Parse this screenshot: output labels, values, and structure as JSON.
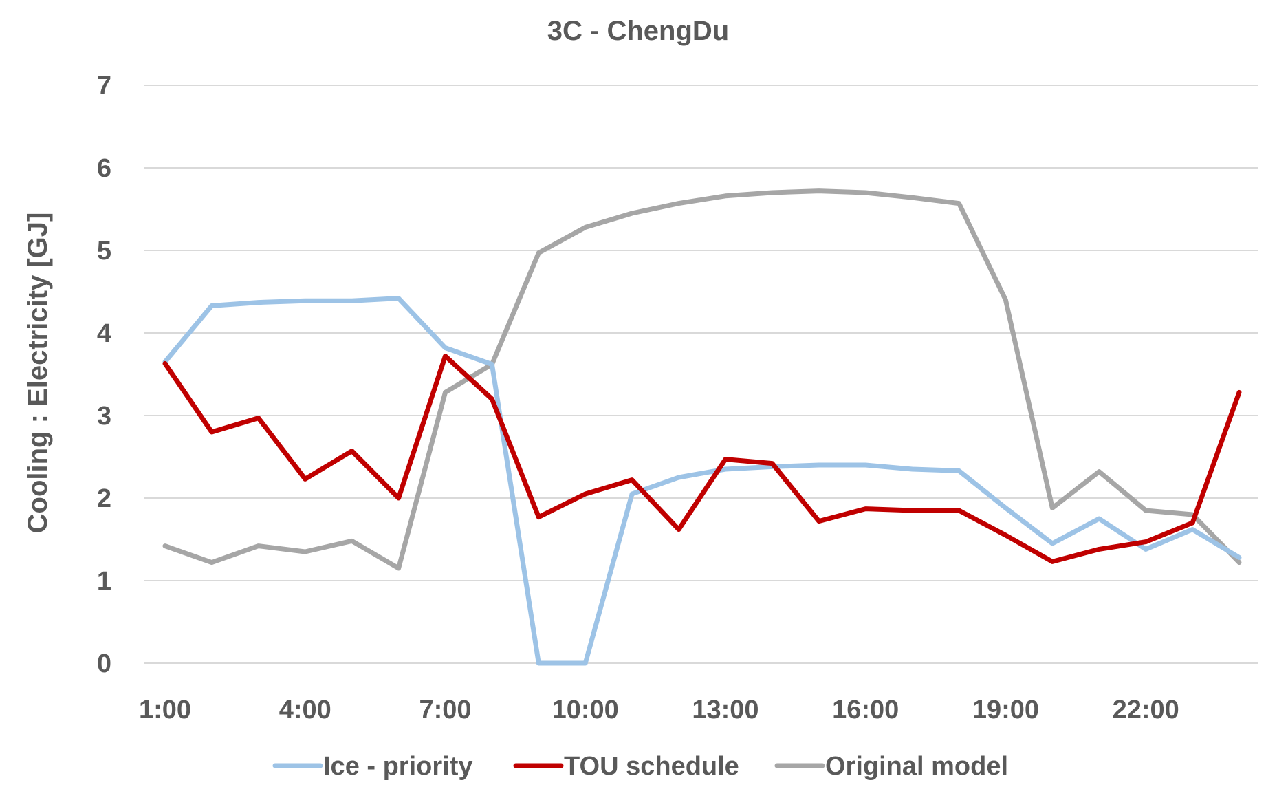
{
  "chart_data": {
    "type": "line",
    "title": "3C - ChengDu",
    "xlabel": "",
    "ylabel": "Cooling : Electricity [GJ]",
    "ylim": [
      0,
      7
    ],
    "yticks": [
      "0",
      "1",
      "2",
      "3",
      "4",
      "5",
      "6",
      "7"
    ],
    "x": [
      "1:00",
      "2:00",
      "3:00",
      "4:00",
      "5:00",
      "6:00",
      "7:00",
      "8:00",
      "9:00",
      "10:00",
      "11:00",
      "12:00",
      "13:00",
      "14:00",
      "15:00",
      "16:00",
      "17:00",
      "18:00",
      "19:00",
      "20:00",
      "21:00",
      "22:00",
      "23:00",
      "24:00"
    ],
    "xtick_labels": [
      "1:00",
      "4:00",
      "7:00",
      "10:00",
      "13:00",
      "16:00",
      "19:00",
      "22:00"
    ],
    "grid": true,
    "legend_position": "bottom",
    "series": [
      {
        "name": "Ice - priority",
        "color": "#9DC3E6",
        "values": [
          3.65,
          4.33,
          4.37,
          4.39,
          4.39,
          4.42,
          3.82,
          3.62,
          0.0,
          0.0,
          2.05,
          2.25,
          2.35,
          2.38,
          2.4,
          2.4,
          2.35,
          2.33,
          1.88,
          1.45,
          1.75,
          1.38,
          1.62,
          1.28
        ]
      },
      {
        "name": "TOU schedule",
        "color": "#C00000",
        "values": [
          3.63,
          2.8,
          2.97,
          2.23,
          2.57,
          2.0,
          3.72,
          3.2,
          1.77,
          2.05,
          2.22,
          1.62,
          2.47,
          2.42,
          1.72,
          1.87,
          1.85,
          1.85,
          1.55,
          1.23,
          1.38,
          1.47,
          1.7,
          3.28
        ]
      },
      {
        "name": "Original model",
        "color": "#A6A6A6",
        "values": [
          1.42,
          1.22,
          1.42,
          1.35,
          1.48,
          1.15,
          3.28,
          3.62,
          4.97,
          5.28,
          5.45,
          5.57,
          5.66,
          5.7,
          5.72,
          5.7,
          5.64,
          5.57,
          4.4,
          1.88,
          2.32,
          1.85,
          1.8,
          1.22
        ]
      }
    ]
  }
}
